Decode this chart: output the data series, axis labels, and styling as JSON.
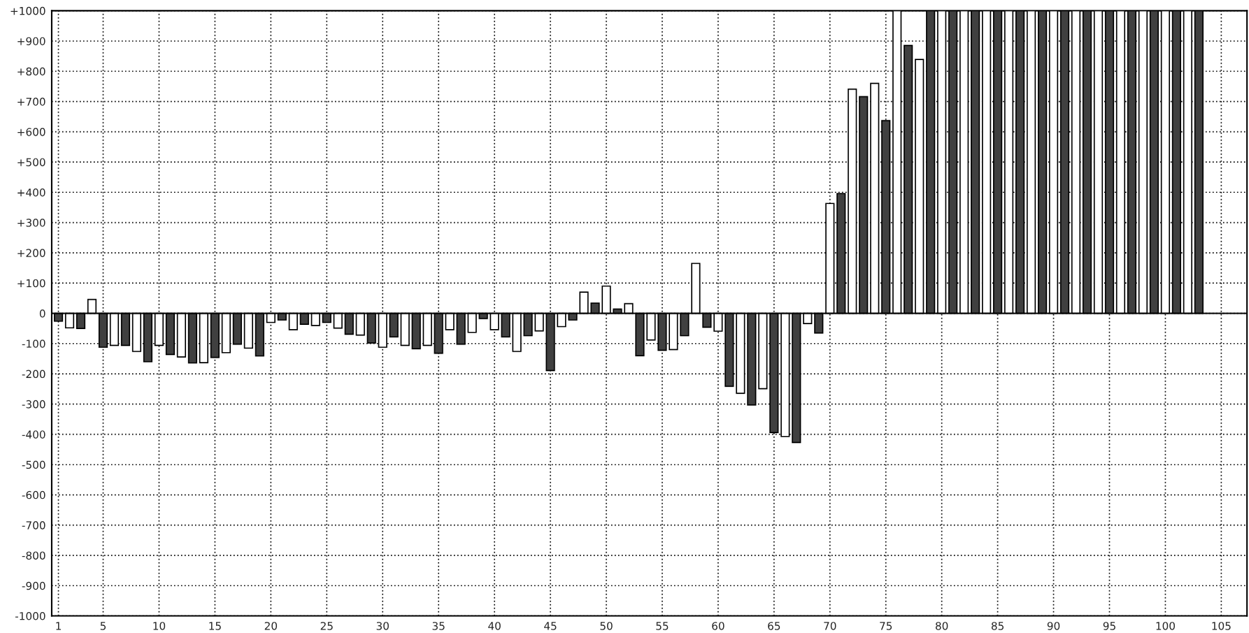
{
  "chart_data": {
    "type": "bar",
    "x": [
      1,
      2,
      3,
      4,
      5,
      6,
      7,
      8,
      9,
      10,
      11,
      12,
      13,
      14,
      15,
      16,
      17,
      18,
      19,
      20,
      21,
      22,
      23,
      24,
      25,
      26,
      27,
      28,
      29,
      30,
      31,
      32,
      33,
      34,
      35,
      36,
      37,
      38,
      39,
      40,
      41,
      42,
      43,
      44,
      45,
      46,
      47,
      48,
      49,
      50,
      51,
      52,
      53,
      54,
      55,
      56,
      57,
      58,
      59,
      60,
      61,
      62,
      63,
      64,
      65,
      66,
      67,
      68,
      69,
      70,
      71,
      72,
      73,
      74,
      75,
      76,
      77,
      78,
      79,
      80,
      81,
      82,
      83,
      84,
      85,
      86,
      87,
      88,
      89,
      90,
      91,
      92,
      93,
      94,
      95,
      96,
      97,
      98,
      99,
      100,
      101,
      102,
      103
    ],
    "values": [
      -26,
      -48,
      -50,
      46,
      -112,
      -106,
      -106,
      -126,
      -160,
      -106,
      -136,
      -144,
      -164,
      -163,
      -146,
      -130,
      -102,
      -115,
      -141,
      -30,
      -22,
      -54,
      -36,
      -40,
      -30,
      -49,
      -69,
      -72,
      -98,
      -112,
      -78,
      -106,
      -117,
      -106,
      -132,
      -54,
      -102,
      -63,
      -17,
      -54,
      -78,
      -126,
      -74,
      -58,
      -189,
      -44,
      -22,
      70,
      34,
      90,
      14,
      32,
      -140,
      -88,
      -122,
      -120,
      -74,
      165,
      -46,
      -59,
      -241,
      -264,
      -303,
      -249,
      -394,
      -407,
      -427,
      -34,
      -65,
      363,
      396,
      741,
      716,
      760,
      637,
      1000,
      885,
      839,
      1000,
      1000,
      1000,
      1000,
      1000,
      1000,
      1000,
      1000,
      1000,
      1000,
      1000,
      1000,
      1000,
      1000,
      1000,
      1000,
      1000,
      1000,
      1000,
      1000,
      1000,
      1000,
      1000,
      1000,
      1000
    ],
    "colors": [
      "#404040",
      "#ffffff",
      "#404040",
      "#ffffff",
      "#404040",
      "#ffffff",
      "#404040",
      "#ffffff",
      "#404040",
      "#ffffff",
      "#404040",
      "#ffffff",
      "#404040",
      "#ffffff",
      "#404040",
      "#ffffff",
      "#404040",
      "#ffffff",
      "#404040",
      "#ffffff",
      "#404040",
      "#ffffff",
      "#404040",
      "#ffffff",
      "#404040",
      "#ffffff",
      "#404040",
      "#ffffff",
      "#404040",
      "#ffffff",
      "#404040",
      "#ffffff",
      "#404040",
      "#ffffff",
      "#404040",
      "#ffffff",
      "#404040",
      "#ffffff",
      "#404040",
      "#ffffff",
      "#404040",
      "#ffffff",
      "#404040",
      "#ffffff",
      "#404040",
      "#ffffff",
      "#404040",
      "#ffffff",
      "#404040",
      "#ffffff",
      "#404040",
      "#ffffff",
      "#404040",
      "#ffffff",
      "#404040",
      "#ffffff",
      "#404040",
      "#ffffff",
      "#404040",
      "#ffffff",
      "#404040",
      "#ffffff",
      "#404040",
      "#ffffff",
      "#404040",
      "#ffffff",
      "#404040",
      "#ffffff",
      "#404040",
      "#ffffff",
      "#404040",
      "#ffffff",
      "#404040",
      "#ffffff",
      "#404040",
      "#ffffff",
      "#404040",
      "#ffffff",
      "#404040",
      "#ffffff",
      "#404040",
      "#ffffff",
      "#404040",
      "#ffffff",
      "#404040",
      "#ffffff",
      "#404040",
      "#ffffff",
      "#404040",
      "#ffffff",
      "#404040",
      "#ffffff",
      "#404040",
      "#ffffff",
      "#404040",
      "#ffffff",
      "#404040",
      "#ffffff",
      "#404040",
      "#ffffff",
      "#404040",
      "#ffffff",
      "#404040"
    ],
    "xlim": [
      0.4,
      107.3
    ],
    "xticks": [
      1,
      5,
      10,
      15,
      20,
      25,
      30,
      35,
      40,
      45,
      50,
      55,
      60,
      65,
      70,
      75,
      80,
      85,
      90,
      95,
      100,
      105
    ],
    "ylim": [
      -1000,
      1000
    ],
    "yticks": [
      {
        "value": 1000,
        "label": "+1000"
      },
      {
        "value": 900,
        "label": "+900"
      },
      {
        "value": 800,
        "label": "+800"
      },
      {
        "value": 700,
        "label": "+700"
      },
      {
        "value": 600,
        "label": "+600"
      },
      {
        "value": 500,
        "label": "+500"
      },
      {
        "value": 400,
        "label": "+400"
      },
      {
        "value": 300,
        "label": "+300"
      },
      {
        "value": 200,
        "label": "+200"
      },
      {
        "value": 100,
        "label": "+100"
      },
      0,
      -100,
      -200,
      -300,
      -400,
      -500,
      -600,
      -700,
      -800,
      -900,
      -1000
    ],
    "ref_lines": [
      {
        "axis": "y",
        "value": 0
      }
    ],
    "grid": true
  }
}
